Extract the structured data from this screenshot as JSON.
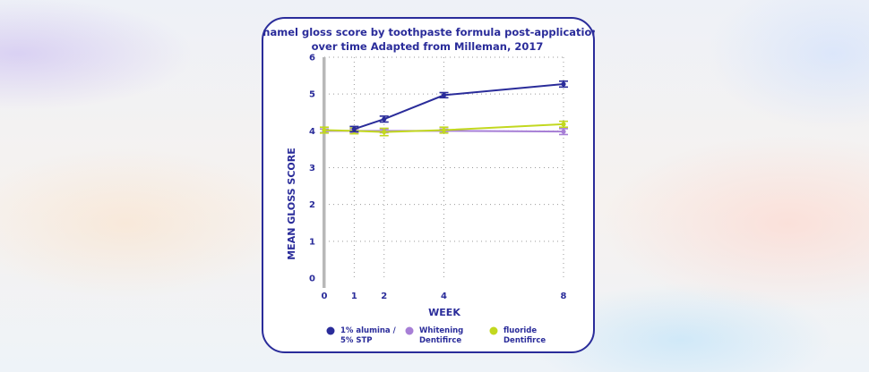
{
  "chart_data": {
    "type": "line",
    "title_lines": [
      "Enamel gloss score by toothpaste formula post-application",
      "over time Adapted from Milleman, 2017"
    ],
    "xlabel": "WEEK",
    "ylabel": "MEAN GLOSS SCORE",
    "x": [
      0,
      1,
      2,
      4,
      8
    ],
    "x_ticks": [
      "0",
      "1",
      "2",
      "4",
      "8"
    ],
    "y_ticks": [
      "0",
      "1",
      "2",
      "3",
      "4",
      "5",
      "6"
    ],
    "ylim": [
      0,
      6
    ],
    "grid": "dotted",
    "legend_position": "bottom",
    "series": [
      {
        "name": "1% alumina / 5% STP",
        "legend_lines": [
          "1% alumina /",
          "5% STP"
        ],
        "color": "#2a2c9a",
        "x": [
          1,
          2,
          4,
          8
        ],
        "values": [
          4.05,
          4.32,
          4.97,
          5.27
        ],
        "errors": [
          0.07,
          0.08,
          0.07,
          0.08
        ]
      },
      {
        "name": "Whitening Dentifirce",
        "legend_lines": [
          "Whitening",
          "Dentifirce"
        ],
        "color": "#a77fd6",
        "x": [
          0,
          1,
          2,
          4,
          8
        ],
        "values": [
          4.0,
          4.0,
          4.0,
          4.0,
          3.98
        ],
        "errors": [
          0.05,
          0.05,
          0.05,
          0.05,
          0.08
        ]
      },
      {
        "name": "fluoride Dentifirce",
        "legend_lines": [
          "fluoride",
          "Dentifirce"
        ],
        "color": "#c2d81f",
        "x": [
          0,
          1,
          2,
          4,
          8
        ],
        "values": [
          4.02,
          4.0,
          3.97,
          4.02,
          4.18
        ],
        "errors": [
          0.08,
          0.08,
          0.1,
          0.08,
          0.08
        ]
      }
    ]
  }
}
